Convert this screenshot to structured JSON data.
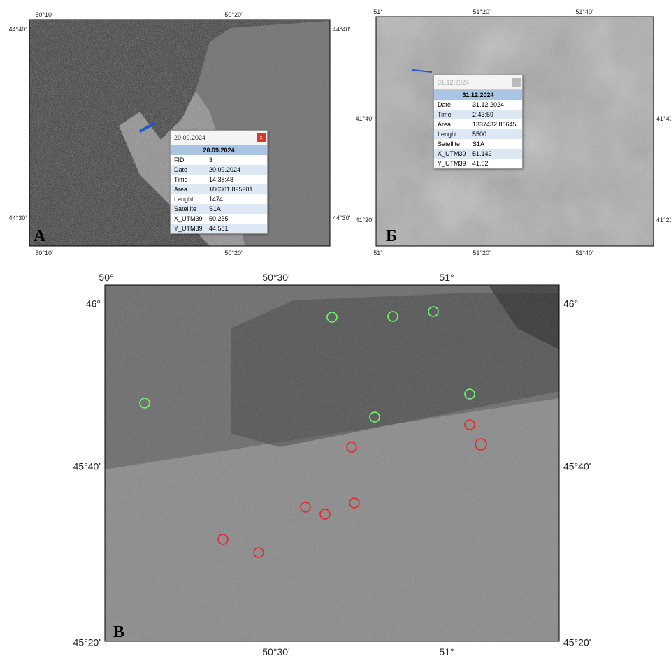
{
  "panels": [
    {
      "label": "А",
      "ticks": {
        "top": [
          "50°10'",
          "50°20'"
        ],
        "bottom": [
          "50°10'",
          "50°20'"
        ],
        "left": [
          "44°40'",
          "44°30'"
        ],
        "right": [
          "44°40'",
          "44°30'"
        ]
      },
      "popup": {
        "title": "20.09.2024",
        "close": "x",
        "header": "20.09.2024",
        "rows": [
          [
            "FID",
            "3"
          ],
          [
            "Date",
            "20.09.2024"
          ],
          [
            "Time",
            "14:38:48"
          ],
          [
            "Area",
            "186301.895901"
          ],
          [
            "Lenght",
            "1474"
          ],
          [
            "Satellite",
            "S1A"
          ],
          [
            "X_UTM39",
            "50.255"
          ],
          [
            "Y_UTM39",
            "44.581"
          ]
        ]
      }
    },
    {
      "label": "Б",
      "ticks": {
        "top": [
          "51°",
          "51°20'",
          "51°40'"
        ],
        "bottom": [
          "51°",
          "51°20'",
          "51°40'"
        ],
        "left": [
          "41°40'",
          "41°20'"
        ],
        "right": [
          "41°40'",
          "41°20'"
        ]
      },
      "popup": {
        "title": "31.12.2024",
        "header": "31.12.2024",
        "rows": [
          [
            "Date",
            "31.12.2024"
          ],
          [
            "Time",
            "2:43:59"
          ],
          [
            "Area",
            "1337432.86645"
          ],
          [
            "Lenght",
            "5500"
          ],
          [
            "Satellite",
            "S1A"
          ],
          [
            "X_UTM39",
            "51.142"
          ],
          [
            "Y_UTM39",
            "41.82"
          ]
        ]
      }
    },
    {
      "label": "В",
      "ticks": {
        "top": [
          "50°",
          "50°30'",
          "51°"
        ],
        "bottom": [
          "50°30'",
          "51°"
        ],
        "left": [
          "46°",
          "45°40'",
          "45°20'"
        ],
        "right": [
          "46°",
          "45°40'",
          "45°20'"
        ]
      }
    }
  ]
}
